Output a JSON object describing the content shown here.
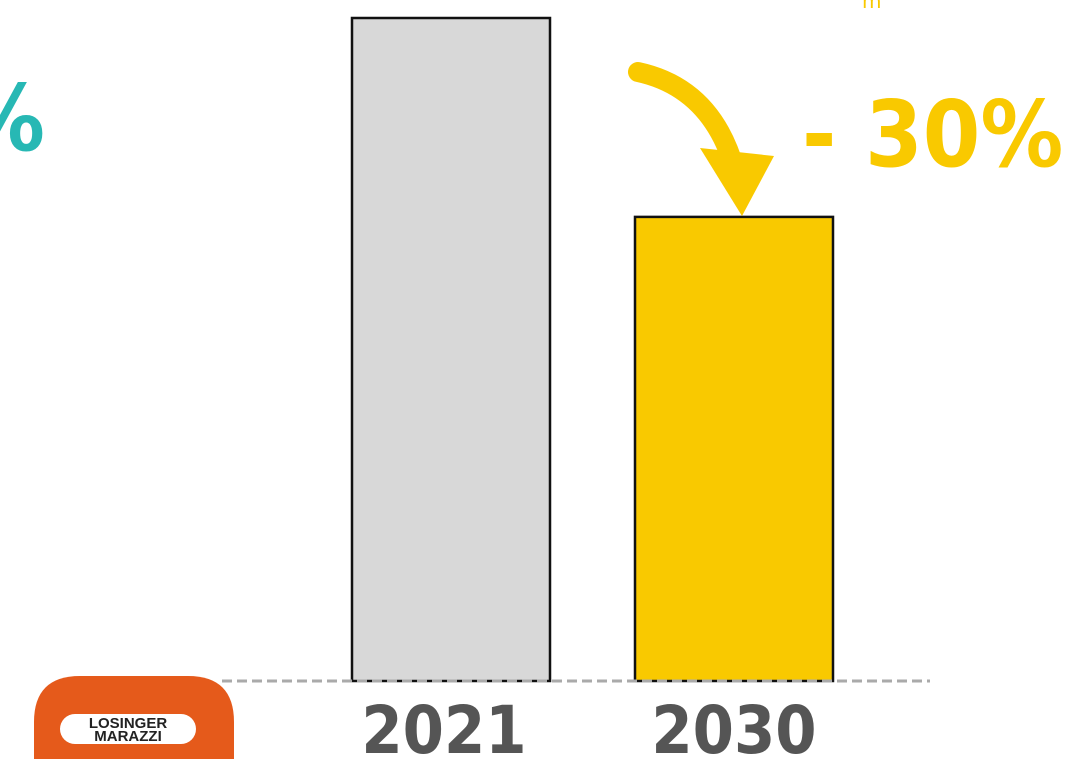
{
  "chart_data": {
    "type": "bar",
    "categories": [
      "2021",
      "2030"
    ],
    "values": [
      100,
      70
    ],
    "ylim": [
      0,
      100
    ],
    "bar_colors": [
      "#d8d8d8",
      "#f9c900"
    ],
    "annotation": "- 30%",
    "annotation_color": "#f9c900",
    "title": "",
    "xlabel": "",
    "ylabel": ""
  },
  "left_fragment": {
    "text": "%",
    "color": "#27b8b4"
  },
  "top_fragment": {
    "text": "m",
    "color": "#f9c900"
  },
  "logo": {
    "line1": "LOSINGER",
    "line2": "MARAZZI",
    "color": "#e55a1b"
  }
}
